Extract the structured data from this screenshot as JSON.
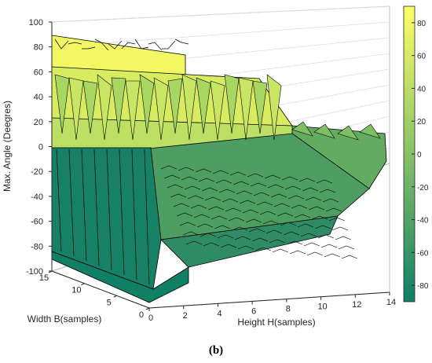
{
  "caption": "(b)",
  "chart_data": {
    "type": "surface",
    "zlabel": "Max. Angle (Deegres)",
    "xlabel": "Height H(samples)",
    "ylabel": "Width  B(samples)",
    "z_ticks": [
      100,
      80,
      60,
      40,
      20,
      0,
      -20,
      -40,
      -60,
      -80,
      -100
    ],
    "x_ticks": [
      0,
      2,
      4,
      6,
      8,
      10,
      12,
      14
    ],
    "y_ticks": [
      0,
      5,
      10,
      15
    ],
    "zlim": [
      -100,
      100
    ],
    "xlim": [
      0,
      14
    ],
    "ylim": [
      0,
      15
    ],
    "colorbar_ticks": [
      80,
      60,
      40,
      20,
      0,
      -20,
      -40,
      -60,
      -80
    ],
    "colorbar_range": [
      -90,
      90
    ],
    "colormap": "summer",
    "colors": {
      "low": "#0f7f66",
      "mid": "#86c266",
      "high": "#ffff66",
      "edge": "#000000",
      "grid": "#dedede",
      "axis": "#262626"
    },
    "grid": true
  }
}
